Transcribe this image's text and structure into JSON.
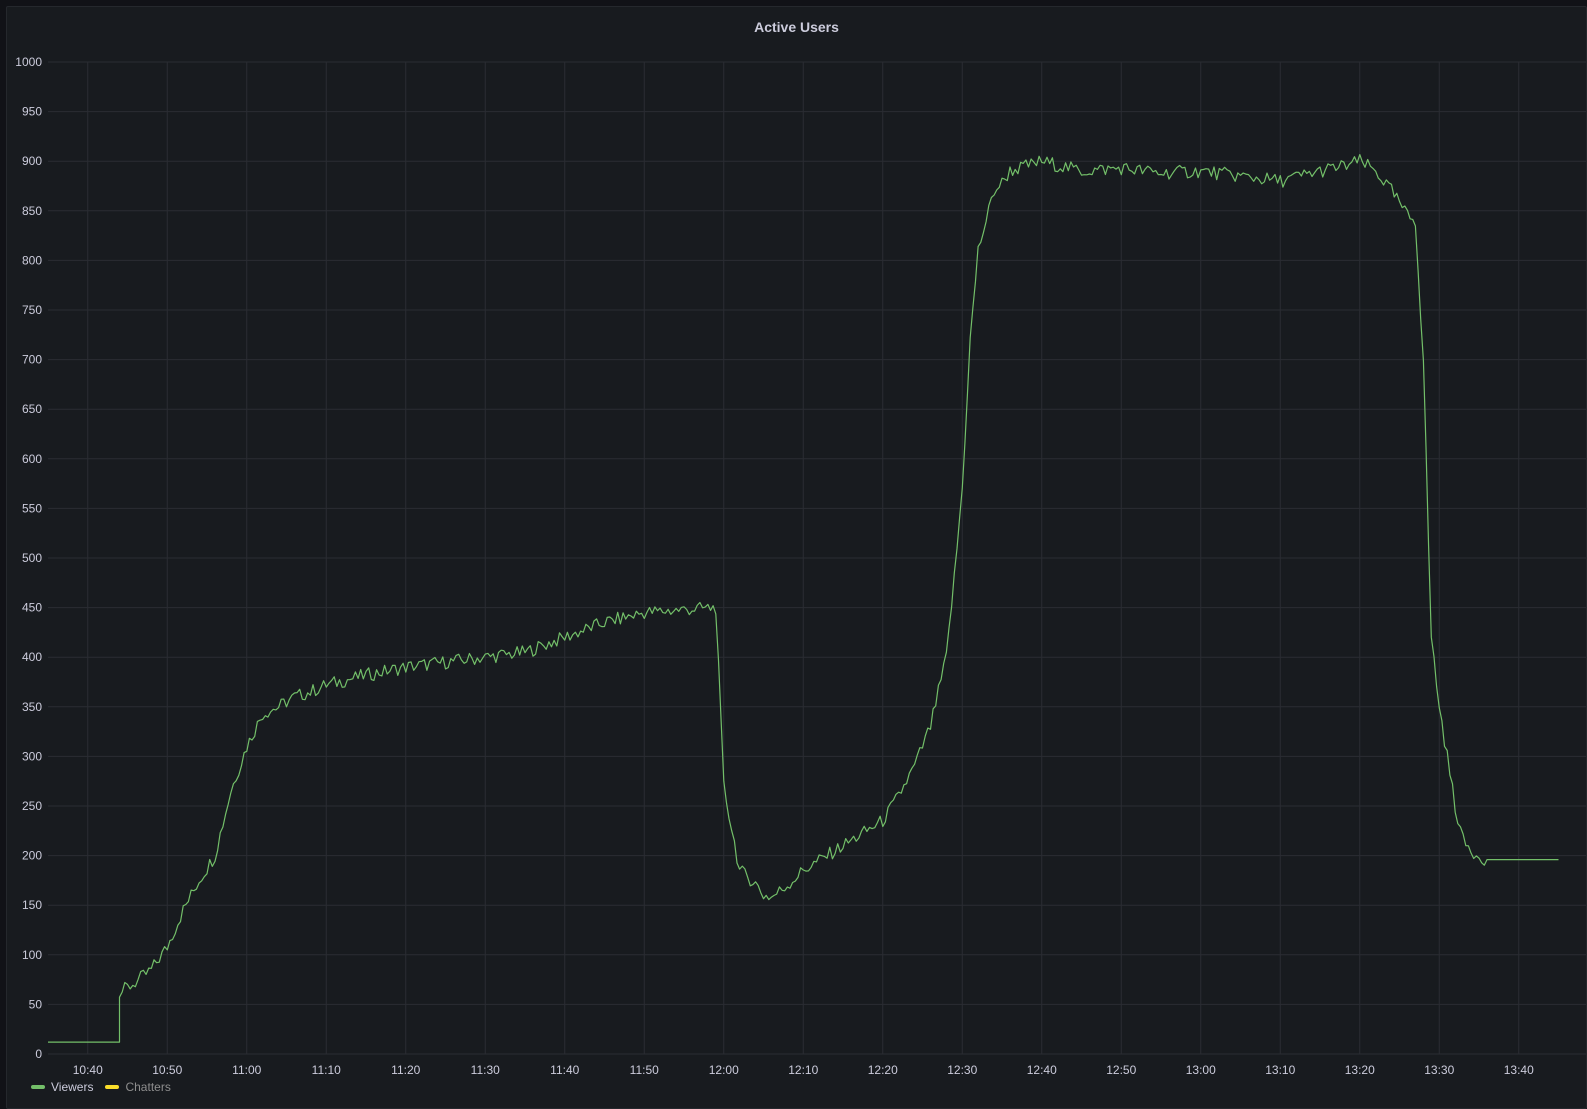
{
  "chart_data": {
    "type": "line",
    "title": "Active Users",
    "xlabel": "",
    "ylabel": "",
    "ylim": [
      0,
      1000
    ],
    "y_ticks": [
      0,
      50,
      100,
      150,
      200,
      250,
      300,
      350,
      400,
      450,
      500,
      550,
      600,
      650,
      700,
      750,
      800,
      850,
      900,
      950,
      1000
    ],
    "x_ticks": [
      "10:40",
      "10:50",
      "11:00",
      "11:10",
      "11:20",
      "11:30",
      "11:40",
      "11:50",
      "12:00",
      "12:10",
      "12:20",
      "12:30",
      "12:40",
      "12:50",
      "13:00",
      "13:10",
      "13:20",
      "13:30",
      "13:40"
    ],
    "grid": true,
    "legend_position": "bottom-left",
    "series": [
      {
        "name": "Viewers",
        "color": "#73bf69",
        "x": [
          "10:35",
          "10:40",
          "10:43",
          "10:44",
          "10:44",
          "10:46",
          "10:48",
          "10:50",
          "10:52",
          "10:54",
          "10:56",
          "10:58",
          "11:00",
          "11:02",
          "11:04",
          "11:06",
          "11:08",
          "11:10",
          "11:15",
          "11:20",
          "11:25",
          "11:30",
          "11:35",
          "11:40",
          "11:45",
          "11:50",
          "11:55",
          "11:59",
          "12:00",
          "12:02",
          "12:04",
          "12:05",
          "12:06",
          "12:08",
          "12:10",
          "12:15",
          "12:20",
          "12:22",
          "12:24",
          "12:26",
          "12:28",
          "12:29",
          "12:30",
          "12:31",
          "12:32",
          "12:33",
          "12:34",
          "12:35",
          "12:36",
          "12:38",
          "12:40",
          "12:45",
          "12:50",
          "12:55",
          "13:00",
          "13:05",
          "13:10",
          "13:15",
          "13:18",
          "13:20",
          "13:22",
          "13:24",
          "13:26",
          "13:27",
          "13:28",
          "13:29",
          "13:30",
          "13:31",
          "13:32",
          "13:33",
          "13:34",
          "13:35",
          "13:36",
          "13:37",
          "13:40",
          "13:45"
        ],
        "values": [
          12,
          12,
          12,
          12,
          62,
          72,
          85,
          108,
          145,
          175,
          200,
          265,
          310,
          343,
          350,
          360,
          365,
          372,
          382,
          390,
          395,
          400,
          405,
          420,
          435,
          445,
          448,
          450,
          270,
          185,
          172,
          160,
          158,
          170,
          185,
          210,
          235,
          260,
          290,
          330,
          400,
          480,
          570,
          720,
          810,
          840,
          870,
          878,
          890,
          895,
          900,
          890,
          893,
          888,
          890,
          885,
          880,
          890,
          895,
          900,
          890,
          870,
          845,
          840,
          700,
          420,
          350,
          300,
          250,
          215,
          205,
          200,
          196,
          196,
          196,
          196
        ]
      },
      {
        "name": "Chatters",
        "color": "#fade2a",
        "x": [],
        "values": []
      }
    ]
  }
}
